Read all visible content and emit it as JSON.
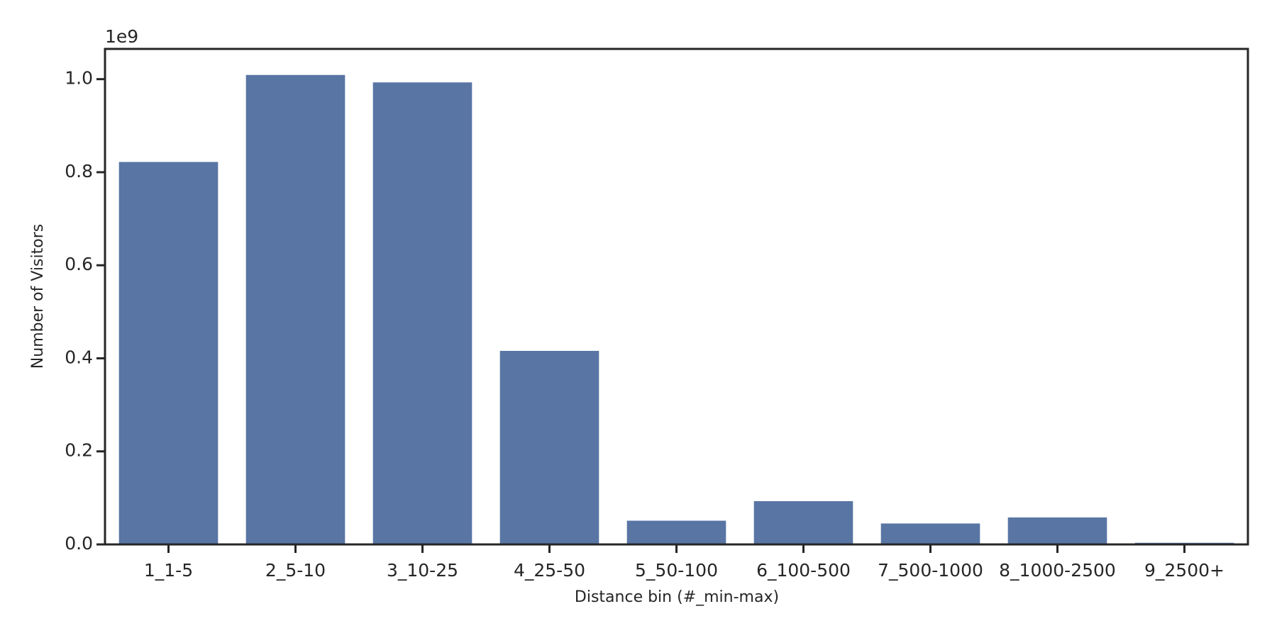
{
  "chart_data": {
    "type": "bar",
    "categories": [
      "1_1-5",
      "2_5-10",
      "3_10-25",
      "4_25-50",
      "5_50-100",
      "6_100-500",
      "7_500-1000",
      "8_1000-2500",
      "9_2500+"
    ],
    "values": [
      822000000,
      1009000000,
      993000000,
      416000000,
      51000000,
      93000000,
      45000000,
      58000000,
      3500000
    ],
    "color": "#5875a4",
    "x_label": "Distance bin (#_min-max)",
    "y_label": "Number of Visitors",
    "y_offset_label": "1e9",
    "ylim": [
      0,
      1065000000
    ],
    "yticks": [
      {
        "value": 0,
        "label": "0.0"
      },
      {
        "value": 200000000,
        "label": "0.2"
      },
      {
        "value": 400000000,
        "label": "0.4"
      },
      {
        "value": 600000000,
        "label": "0.6"
      },
      {
        "value": 800000000,
        "label": "0.8"
      },
      {
        "value": 1000000000,
        "label": "1.0"
      }
    ],
    "grid": false
  }
}
